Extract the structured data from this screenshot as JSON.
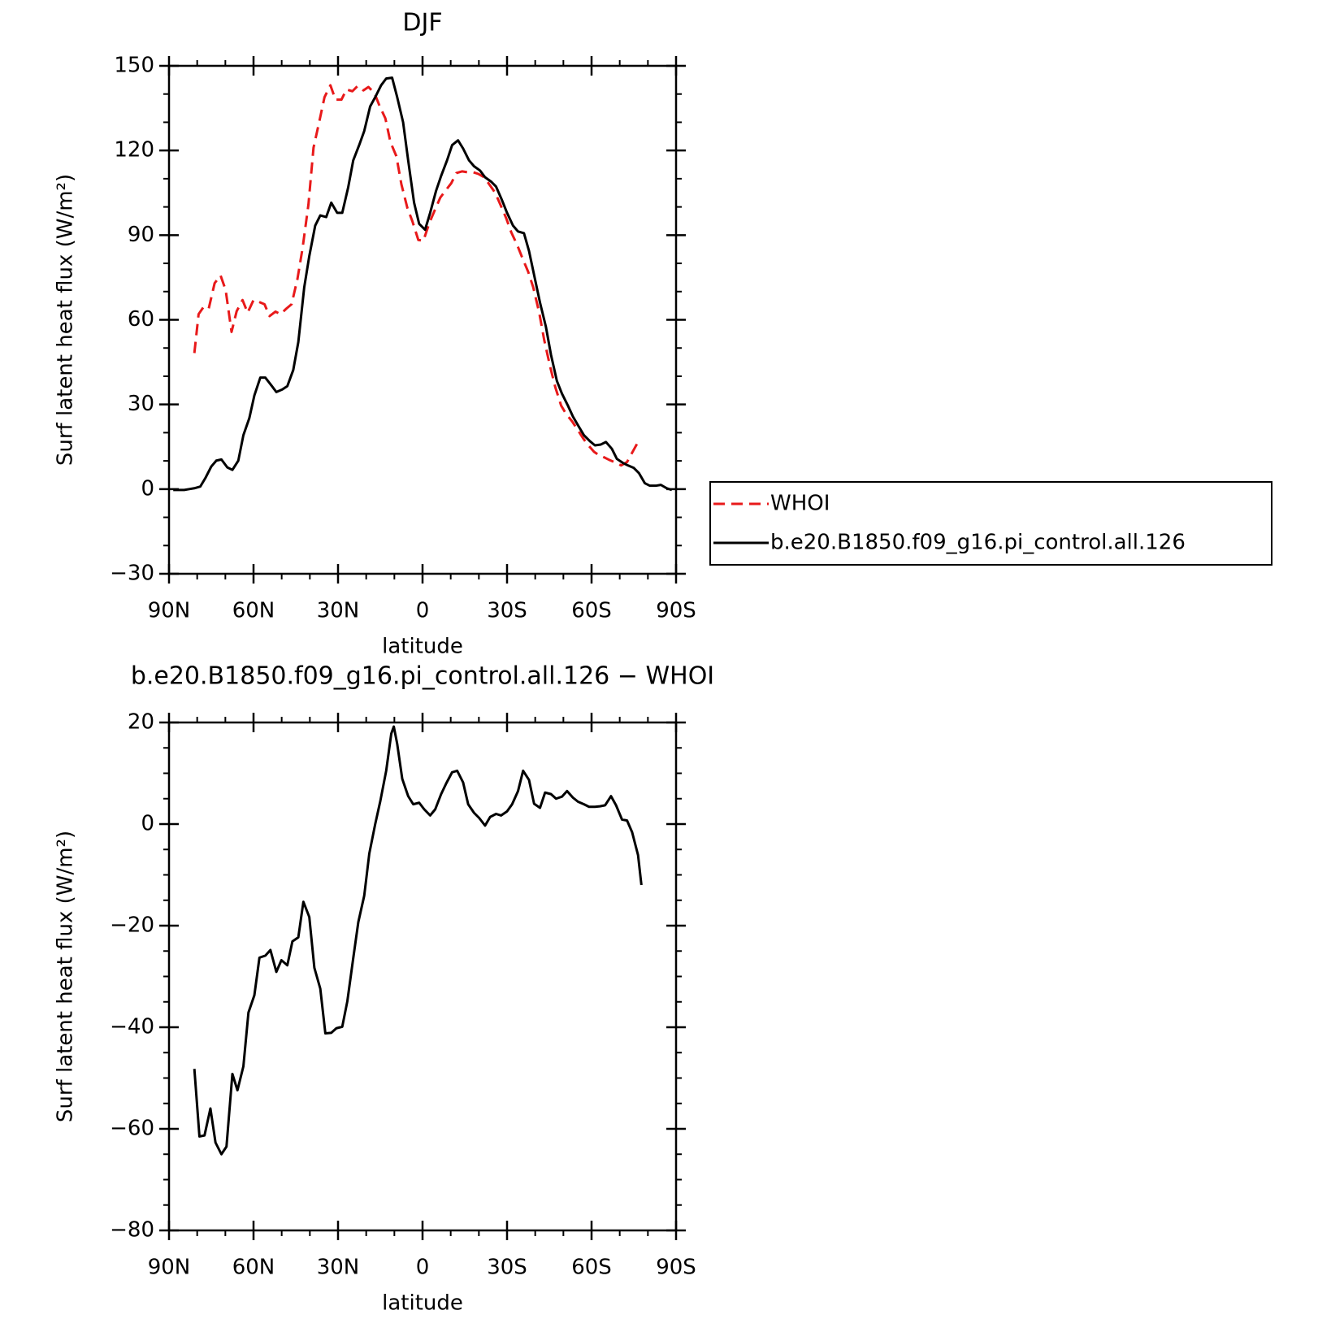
{
  "chart_data": [
    {
      "type": "line",
      "title": "DJF",
      "xlabel": "latitude",
      "ylabel": "Surf latent heat flux (W/m²)",
      "xlim": [
        90,
        -90
      ],
      "xticks": [
        {
          "value": 90,
          "label": "90N"
        },
        {
          "value": 60,
          "label": "60N"
        },
        {
          "value": 30,
          "label": "30N"
        },
        0,
        {
          "value": -30,
          "label": "30S"
        },
        {
          "value": -60,
          "label": "60S"
        },
        {
          "value": -90,
          "label": "90S"
        }
      ],
      "ylim": [
        -30,
        150
      ],
      "yticks": [
        {
          "value": -30,
          "label": "−30"
        },
        0,
        30,
        60,
        90,
        120,
        150
      ],
      "legend": "right",
      "series": [
        {
          "name": "WHOI",
          "color": "#e8191a",
          "linestyle": "dashed",
          "x": [
            81,
            79.5,
            77.7,
            75.9,
            73.8,
            71.7,
            69.9,
            67.8,
            66,
            63.9,
            62.1,
            60,
            58.2,
            56.1,
            54.3,
            52.2,
            50.4,
            48.3,
            46.5,
            44.4,
            42.6,
            40.5,
            38.7,
            36.6,
            34.8,
            32.7,
            30.9,
            28.8,
            27,
            24.9,
            23.1,
            21,
            19.2,
            17.1,
            15.3,
            13.2,
            11.4,
            9.3,
            7.5,
            5.4,
            3.6,
            1.5,
            -0.3,
            -2.4,
            -4.2,
            -6.3,
            -8.1,
            -10.2,
            -12,
            -14.1,
            -15.9,
            -18,
            -19.8,
            -21.9,
            -23.7,
            -25.8,
            -27.6,
            -29.7,
            -31.5,
            -33.6,
            -35.4,
            -37.5,
            -39.3,
            -41.4,
            -43.2,
            -45.3,
            -47.1,
            -49.2,
            -51,
            -53.1,
            -54.9,
            -57,
            -58.8,
            -60.9,
            -62.7,
            -64.8,
            -66.6,
            -68.7,
            -70.5,
            -72.6,
            -74.4,
            -76.5,
            -77.4
          ],
          "values": [
            48.2,
            62,
            64.6,
            64,
            73,
            75.7,
            70.6,
            55.7,
            63,
            67,
            62.5,
            67,
            66.4,
            65.5,
            61.3,
            62.9,
            62,
            64,
            65.5,
            74.5,
            85.3,
            100.9,
            121,
            130.5,
            138.9,
            143.1,
            138,
            138,
            141.6,
            141,
            142.8,
            141.3,
            142.5,
            140.4,
            135.9,
            131.4,
            123,
            118,
            108,
            99.7,
            94.9,
            88.3,
            88,
            94.3,
            98.5,
            103.3,
            105.7,
            108.4,
            112,
            112.6,
            112.3,
            112.3,
            111.7,
            110.5,
            108,
            105,
            100.9,
            96,
            91,
            86.5,
            82,
            77,
            71.5,
            62.6,
            52.8,
            43.4,
            36.2,
            29.6,
            26.6,
            24,
            21.3,
            18,
            15.6,
            13.2,
            12,
            11.1,
            10.2,
            9.3,
            8.4,
            9.6,
            12.9,
            16.7,
            17.6
          ]
        },
        {
          "name": "b.e20.B1850.f09_g16.pi_control.all.126",
          "color": "#000000",
          "linestyle": "solid",
          "x": [
            88.5,
            84.6,
            82.8,
            81,
            78.9,
            77.1,
            75,
            73.2,
            71.4,
            69.3,
            67.5,
            65.4,
            63.6,
            61.5,
            59.7,
            57.6,
            55.8,
            53.7,
            51.9,
            49.8,
            48,
            45.9,
            44.1,
            42,
            40.2,
            38.1,
            36.3,
            34.2,
            32.4,
            30.3,
            28.5,
            26.4,
            24.6,
            22.5,
            20.7,
            18.6,
            16.8,
            14.7,
            12.9,
            10.8,
            9,
            6.9,
            5.1,
            3,
            1.2,
            -0.9,
            -2.7,
            -4.8,
            -6.6,
            -8.7,
            -10.5,
            -12.6,
            -14.4,
            -16.5,
            -18.3,
            -20.4,
            -22.2,
            -24.3,
            -26.1,
            -28.2,
            -30,
            -32.1,
            -33.9,
            -36,
            -37.8,
            -39.9,
            -41.7,
            -43.8,
            -45.6,
            -47.7,
            -49.5,
            -51.6,
            -53.4,
            -55.5,
            -57.3,
            -59.4,
            -61.2,
            -63.3,
            -65.1,
            -67.2,
            -69,
            -71.1,
            -72.9,
            -75,
            -76.8,
            -78.9,
            -80.7,
            -82.8,
            -84.6,
            -86.7,
            -88.5
          ],
          "values": [
            -0.3,
            -0.3,
            0,
            0.3,
            0.9,
            3.9,
            8,
            10.1,
            10.5,
            7.7,
            6.8,
            10.1,
            19.1,
            25.1,
            33.2,
            39.5,
            39.5,
            36.8,
            34.4,
            35.3,
            36.5,
            42.2,
            52.1,
            71.5,
            82.6,
            93.4,
            97,
            96.4,
            101.5,
            97.9,
            97.9,
            106.9,
            116.5,
            121.9,
            126.9,
            135.6,
            138.9,
            143.1,
            145.5,
            145.8,
            138.9,
            130,
            116.5,
            101.5,
            94,
            91.9,
            97.9,
            105.7,
            111,
            116.5,
            121.9,
            123.6,
            120.7,
            116.5,
            114.4,
            112.9,
            110.5,
            109,
            107.2,
            102.4,
            97.9,
            93.4,
            91.3,
            90.7,
            84.4,
            74.5,
            66.1,
            57.5,
            47.6,
            38.3,
            33.8,
            29.6,
            25.7,
            22.1,
            19.1,
            17,
            15.5,
            15.8,
            16.7,
            14.3,
            10.7,
            9.3,
            8.4,
            7.5,
            5.7,
            2.1,
            1.2,
            1.2,
            1.5,
            0.3,
            -0.3
          ]
        }
      ]
    },
    {
      "type": "line",
      "title": "b.e20.B1850.f09_g16.pi_control.all.126 − WHOI",
      "xlabel": "latitude",
      "ylabel": "Surf latent heat flux (W/m²)",
      "xlim": [
        90,
        -90
      ],
      "xticks": [
        {
          "value": 90,
          "label": "90N"
        },
        {
          "value": 60,
          "label": "60N"
        },
        {
          "value": 30,
          "label": "30N"
        },
        0,
        {
          "value": -30,
          "label": "30S"
        },
        {
          "value": -60,
          "label": "60S"
        },
        {
          "value": -90,
          "label": "90S"
        }
      ],
      "ylim": [
        -80,
        20
      ],
      "yticks": [
        {
          "value": -80,
          "label": "−80"
        },
        {
          "value": -60,
          "label": "−60"
        },
        {
          "value": -40,
          "label": "−40"
        },
        {
          "value": -20,
          "label": "−20"
        },
        0,
        20
      ],
      "series": [
        {
          "color": "#000000",
          "linestyle": "solid",
          "x": [
            81,
            79.2,
            77.4,
            75.3,
            73.5,
            71.4,
            69.6,
            67.5,
            65.7,
            63.6,
            61.8,
            59.7,
            57.9,
            55.8,
            54,
            51.9,
            50.1,
            48,
            46.2,
            44.1,
            42.3,
            40.2,
            38.4,
            36.3,
            34.5,
            32.4,
            30.6,
            28.5,
            26.7,
            24.6,
            22.8,
            20.7,
            18.9,
            16.8,
            15,
            12.9,
            11.1,
            10.2,
            9,
            7.2,
            5.1,
            3.3,
            1.2,
            -0.6,
            -2.7,
            -4.5,
            -6.6,
            -8.4,
            -10.5,
            -12.3,
            -14.4,
            -16.2,
            -18.3,
            -20.1,
            -22.2,
            -24,
            -26.1,
            -27.9,
            -30,
            -31.8,
            -33.9,
            -35.7,
            -37.8,
            -39.6,
            -41.7,
            -43.5,
            -45.6,
            -47.4,
            -49.5,
            -51.3,
            -53.4,
            -55.2,
            -57.3,
            -59.1,
            -61.2,
            -63,
            -64.8,
            -66.9,
            -68.7,
            -70.8,
            -72.6,
            -74.4,
            -76.5,
            -77.7
          ],
          "values": [
            -48.2,
            -61.5,
            -61.3,
            -56,
            -62.7,
            -65,
            -63.5,
            -49.2,
            -52.4,
            -47.7,
            -37.1,
            -33.7,
            -26.3,
            -25.9,
            -24.8,
            -29.1,
            -26.8,
            -27.8,
            -23.1,
            -22.3,
            -15.3,
            -18.3,
            -28.3,
            -32.4,
            -41.2,
            -41.1,
            -40.2,
            -39.9,
            -34.9,
            -26.4,
            -19.3,
            -14.1,
            -5.8,
            0,
            4.5,
            10.5,
            17.8,
            19.2,
            15.8,
            8.9,
            5.5,
            3.9,
            4.2,
            2.9,
            1.7,
            2.9,
            5.9,
            8,
            10.2,
            10.5,
            8.2,
            3.9,
            2.2,
            1.2,
            -0.3,
            1.4,
            2,
            1.7,
            2.5,
            3.9,
            6.5,
            10.5,
            8.7,
            4,
            3.2,
            6.2,
            5.9,
            5,
            5.4,
            6.5,
            5.2,
            4.4,
            3.9,
            3.4,
            3.4,
            3.5,
            3.7,
            5.5,
            3.7,
            0.9,
            0.7,
            -1.6,
            -6.1,
            -12
          ]
        }
      ]
    }
  ]
}
